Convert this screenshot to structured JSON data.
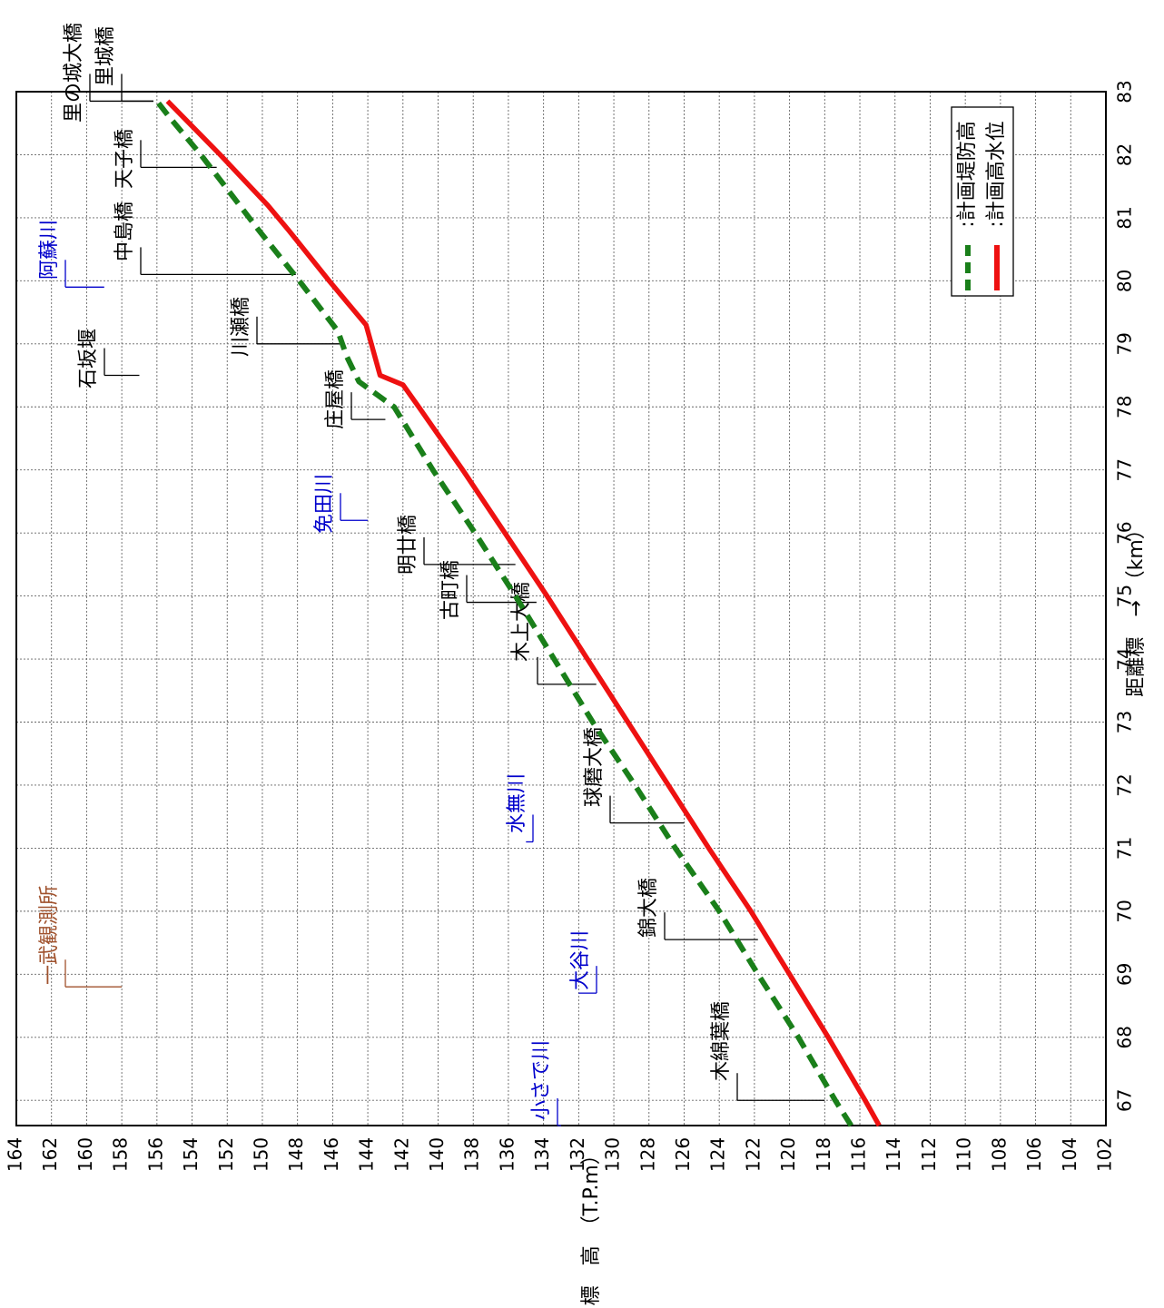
{
  "chart_data": {
    "type": "line",
    "orientation": "rotated-90-clockwise",
    "xlabel": "距離標　→　（km）",
    "ylabel": "↑　標　高　（T.P.m）",
    "xlim": [
      66.6,
      83
    ],
    "ylim": [
      102,
      164
    ],
    "x_ticks": [
      67,
      68,
      69,
      70,
      71,
      72,
      73,
      74,
      75,
      76,
      77,
      78,
      79,
      80,
      81,
      82,
      83
    ],
    "y_ticks": [
      102,
      104,
      106,
      108,
      110,
      112,
      114,
      116,
      118,
      120,
      122,
      124,
      126,
      128,
      130,
      132,
      134,
      136,
      138,
      140,
      142,
      144,
      146,
      148,
      150,
      152,
      154,
      156,
      158,
      160,
      162,
      164
    ],
    "grid": true,
    "legend_position": "top-right",
    "legend": [
      {
        "label": ":計画堤防高",
        "color": "#1a7f1a",
        "style": "dashed"
      },
      {
        "label": ":計画高水位",
        "color": "#ee1111",
        "style": "solid"
      }
    ],
    "series": [
      {
        "name": ":計画堤防高",
        "color": "#1a7f1a",
        "style": "dashed",
        "x": [
          66.6,
          67,
          68,
          69,
          70,
          71,
          72,
          73,
          74,
          75,
          76,
          77,
          78,
          78.4,
          78.8,
          79.2,
          80,
          80.8,
          81.2,
          82,
          82.6,
          82.85
        ],
        "y": [
          116.5,
          117.4,
          119.5,
          121.8,
          124.0,
          126.5,
          128.8,
          131.2,
          133.4,
          135.6,
          137.9,
          140.3,
          142.5,
          144.5,
          145.2,
          145.7,
          147.9,
          150.2,
          151.3,
          153.5,
          155.3,
          156.0
        ]
      },
      {
        "name": ":計画高水位",
        "color": "#ee1111",
        "style": "solid",
        "x": [
          66.6,
          67,
          68,
          69,
          70,
          71,
          72,
          73,
          74,
          75,
          76,
          77,
          78,
          78.35,
          78.5,
          79.3,
          80,
          80.8,
          81.2,
          82,
          82.85
        ],
        "y": [
          114.9,
          115.7,
          117.8,
          120.0,
          122.2,
          124.6,
          126.9,
          129.2,
          131.5,
          133.8,
          136.2,
          138.6,
          141.1,
          142.0,
          143.3,
          144.1,
          146.2,
          148.5,
          149.7,
          152.4,
          155.4
        ]
      }
    ],
    "annotations": [
      {
        "text": "里の城大橋",
        "color": "#000000",
        "x": 82.85,
        "y": 156.2
      },
      {
        "text": "里城橋",
        "color": "#000000",
        "x": 82.85,
        "y": 156.2
      },
      {
        "text": "天子橋",
        "color": "#000000",
        "x": 81.8,
        "y": 152.6
      },
      {
        "text": "中島橋",
        "color": "#000000",
        "x": 80.1,
        "y": 148.1
      },
      {
        "text": "川瀬橋",
        "color": "#000000",
        "x": 79.0,
        "y": 145.3
      },
      {
        "text": "庄屋橋",
        "color": "#000000",
        "x": 77.8,
        "y": 143.0
      },
      {
        "text": "明廿橋",
        "color": "#000000",
        "x": 75.5,
        "y": 135.6
      },
      {
        "text": "古町橋",
        "color": "#000000",
        "x": 74.9,
        "y": 134.4
      },
      {
        "text": "木上大橋",
        "color": "#000000",
        "x": 73.6,
        "y": 131.0
      },
      {
        "text": "球磨大橋",
        "color": "#000000",
        "x": 71.4,
        "y": 126.0
      },
      {
        "text": "錦大橋",
        "color": "#000000",
        "x": 69.55,
        "y": 121.8
      },
      {
        "text": "木綿葉橋",
        "color": "#000000",
        "x": 67.0,
        "y": 118.0
      },
      {
        "text": "阿蘇川",
        "color": "#0000cc",
        "x": 79.9,
        "y": 159.0
      },
      {
        "text": "石坂堰",
        "color": "#000000",
        "x": 78.5,
        "y": 157.0
      },
      {
        "text": "免田川",
        "color": "#0000cc",
        "x": 76.2,
        "y": 144.0
      },
      {
        "text": "水無川",
        "color": "#0000cc",
        "x": 71.1,
        "y": 135.0
      },
      {
        "text": "大谷川",
        "color": "#0000cc",
        "x": 68.7,
        "y": 132.0
      },
      {
        "text": "小さで川",
        "color": "#0000cc",
        "x": 66.6,
        "y": 133.0
      },
      {
        "text": "一武観測所",
        "color": "#a0522d",
        "x": 68.8,
        "y": 158.0
      }
    ]
  }
}
